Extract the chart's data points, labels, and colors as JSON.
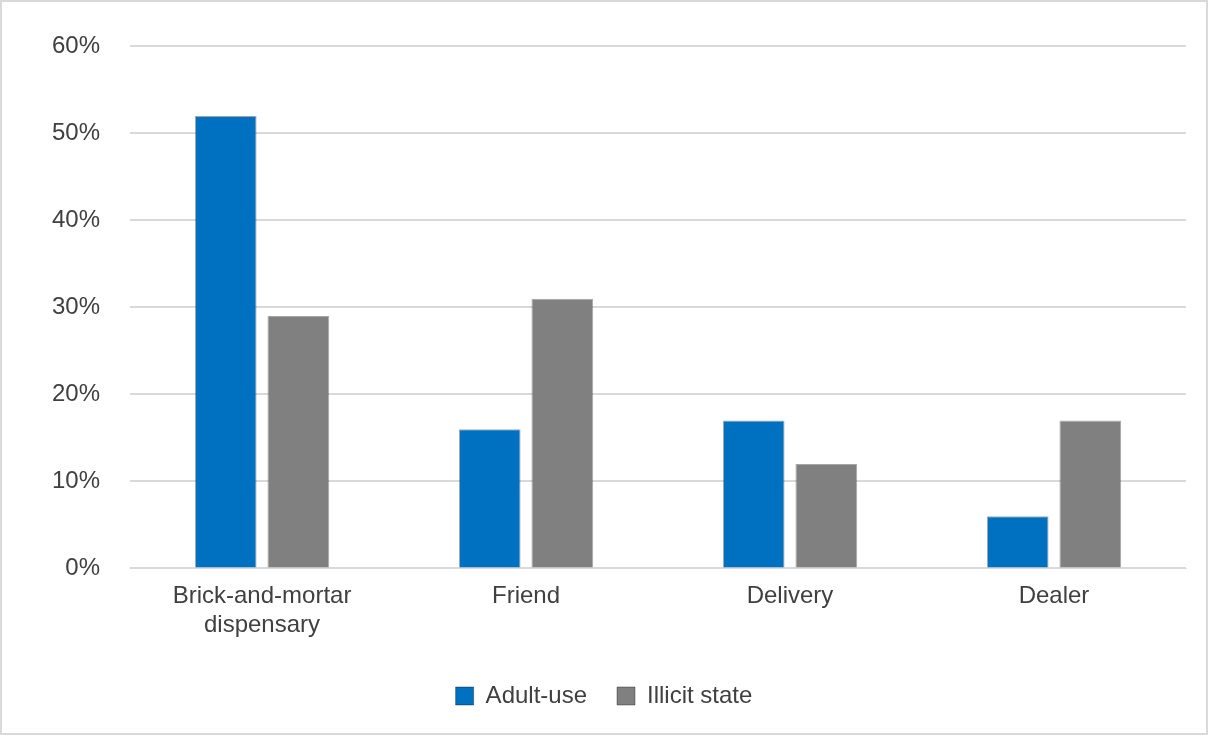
{
  "chart_data": {
    "type": "bar",
    "categories": [
      "Brick-and-mortar dispensary",
      "Friend",
      "Delivery",
      "Dealer"
    ],
    "series": [
      {
        "name": "Adult-use",
        "color": "#0070c0",
        "values": [
          52,
          16,
          17,
          6
        ]
      },
      {
        "name": "Illicit state",
        "color": "#808080",
        "values": [
          29,
          31,
          12,
          17
        ]
      }
    ],
    "ylim": [
      0,
      60
    ],
    "yticks": [
      {
        "value": 0,
        "label": "0%"
      },
      {
        "value": 10,
        "label": "10%"
      },
      {
        "value": 20,
        "label": "20%"
      },
      {
        "value": 30,
        "label": "30%"
      },
      {
        "value": 40,
        "label": "40%"
      },
      {
        "value": 50,
        "label": "50%"
      },
      {
        "value": 60,
        "label": "60%"
      }
    ],
    "grid": "y",
    "legend": "bottom"
  }
}
